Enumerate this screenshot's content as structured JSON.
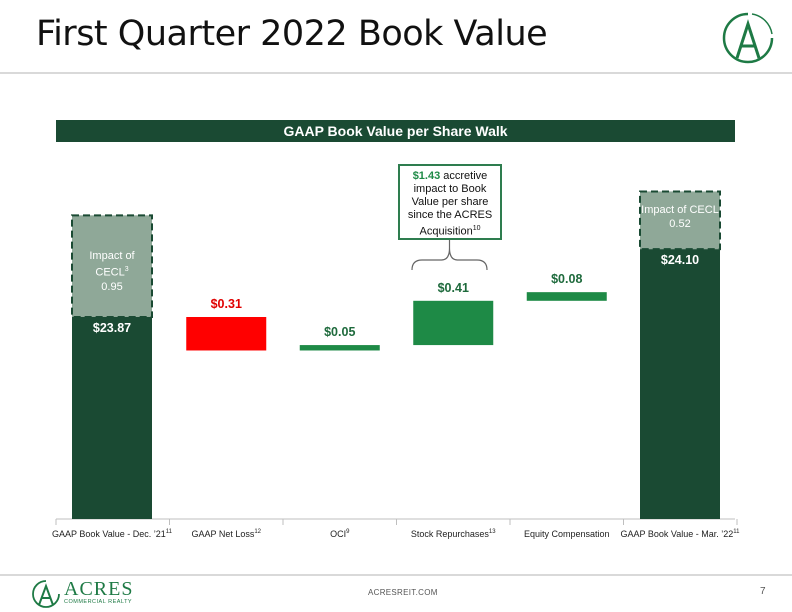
{
  "slide": {
    "title": "First Quarter 2022 Book Value",
    "banner": "GAAP Book Value per Share Walk",
    "footer_url": "ACRESREIT.COM",
    "page_number": "7",
    "brand_name": "ACRES",
    "brand_sub": "COMMERCIAL REALTY"
  },
  "callout": {
    "amount": "$1.43",
    "text": " accretive impact to Book Value per share since the ACRES Acquisition",
    "sup": "10"
  },
  "colors": {
    "dark_green": "#1a4a33",
    "cecl_gray": "#8fa898",
    "negative_red": "#ff0000",
    "positive_green": "#1e8a46",
    "brand_green": "#1e7a45"
  },
  "chart_data": {
    "type": "bar",
    "subtype": "waterfall",
    "title": "GAAP Book Value per Share Walk",
    "ylim": [
      0,
      26
    ],
    "categories": [
      {
        "label": "GAAP Book Value - Dec. ’21",
        "sup": "11"
      },
      {
        "label": "GAAP Net Loss",
        "sup": "12"
      },
      {
        "label": "OCI",
        "sup": "9"
      },
      {
        "label": "Stock Repurchases",
        "sup": "13"
      },
      {
        "label": "Equity Compensation",
        "sup": ""
      },
      {
        "label": "GAAP Book Value - Mar. ’22",
        "sup": "11"
      }
    ],
    "bars": [
      {
        "kind": "total",
        "start": 0,
        "end": 23.87,
        "label": "$23.87",
        "color": "#1a4a33",
        "label_color": "#ffffff"
      },
      {
        "kind": "decrease",
        "start": 23.87,
        "end": 23.56,
        "label": "$0.31",
        "color": "#ff0000",
        "label_color": "#e00000"
      },
      {
        "kind": "increase",
        "start": 23.56,
        "end": 23.61,
        "label": "$0.05",
        "color": "#1e8a46",
        "label_color": "#1e6a3c"
      },
      {
        "kind": "increase",
        "start": 23.61,
        "end": 24.02,
        "label": "$0.41",
        "color": "#1e8a46",
        "label_color": "#1e6a3c"
      },
      {
        "kind": "increase",
        "start": 24.02,
        "end": 24.1,
        "label": "$0.08",
        "color": "#1e8a46",
        "label_color": "#1e6a3c"
      },
      {
        "kind": "total",
        "start": 0,
        "end": 24.1,
        "label": "$24.10",
        "color": "#1a4a33",
        "label_color": "#ffffff"
      }
    ],
    "cecl_impacts": [
      {
        "category_index": 0,
        "label": "Impact of CECL",
        "sup": "3",
        "value": "0.95",
        "amount": 0.95
      },
      {
        "category_index": 5,
        "label": "Impact of CECL",
        "sup": "",
        "value": "0.52",
        "amount": 0.52
      }
    ]
  }
}
